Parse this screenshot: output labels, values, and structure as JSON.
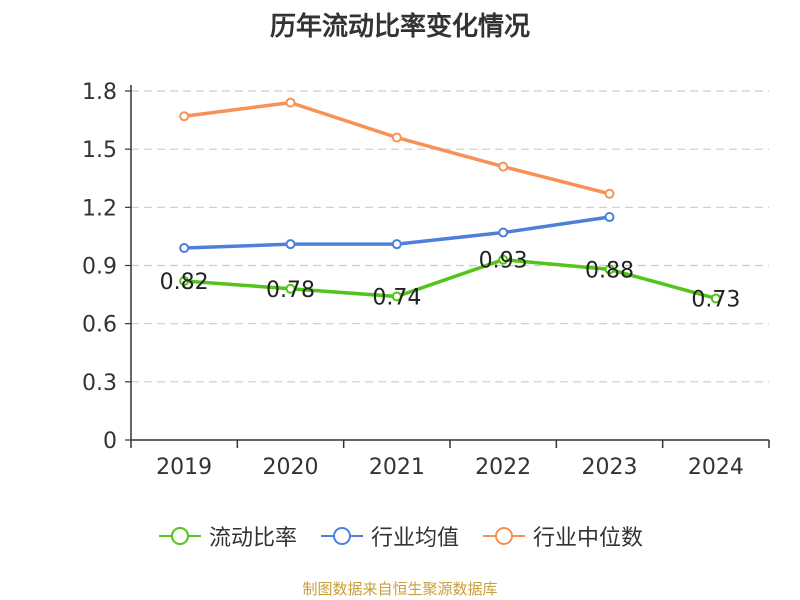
{
  "chart_data": {
    "type": "line",
    "title": "历年流动比率变化情况",
    "categories": [
      "2019",
      "2020",
      "2021",
      "2022",
      "2023",
      "2024"
    ],
    "ylim": [
      0,
      1.8
    ],
    "yticks": [
      "0",
      "0.3",
      "0.6",
      "0.9",
      "1.2",
      "1.5",
      "1.8"
    ],
    "ytick_values": [
      0,
      0.3,
      0.6,
      0.9,
      1.2,
      1.5,
      1.8
    ],
    "grid": true,
    "legend_position": "bottom",
    "series": [
      {
        "name": "流动比率",
        "color": "#52c41a",
        "values": [
          0.82,
          0.78,
          0.74,
          0.93,
          0.88,
          0.73
        ],
        "show_labels": true
      },
      {
        "name": "行业均值",
        "color": "#4e80d9",
        "values": [
          0.99,
          1.01,
          1.01,
          1.07,
          1.15,
          null
        ],
        "show_labels": false
      },
      {
        "name": "行业中位数",
        "color": "#f79156",
        "values": [
          1.67,
          1.74,
          1.56,
          1.41,
          1.27,
          null
        ],
        "show_labels": false
      }
    ],
    "data_labels": [
      "0.82",
      "0.78",
      "0.74",
      "0.93",
      "0.88",
      "0.73"
    ]
  },
  "source": "制图数据来自恒生聚源数据库"
}
